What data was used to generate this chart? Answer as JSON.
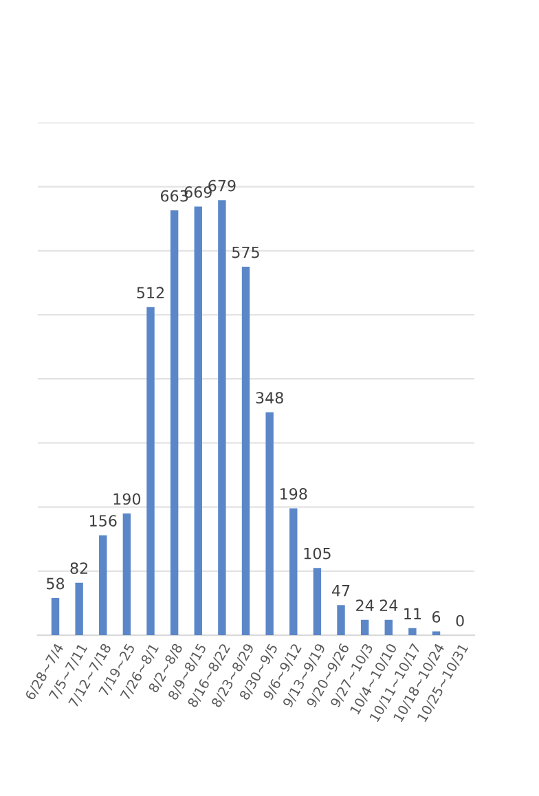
{
  "chart_data": {
    "type": "bar",
    "categories": [
      "6/28~7/4",
      "7/5~7/11",
      "7/12~7/18",
      "7/19~25",
      "7/26~8/1",
      "8/2~8/8",
      "8/9~8/15",
      "8/16~8/22",
      "8/23~8/29",
      "8/30~9/5",
      "9/6~9/12",
      "9/13~9/19",
      "9/20~9/26",
      "9/27~10/3",
      "10/4~10/10",
      "10/11~10/17",
      "10/18~10/24",
      "10/25~10/31"
    ],
    "values": [
      58,
      82,
      156,
      190,
      512,
      663,
      669,
      679,
      575,
      348,
      198,
      105,
      47,
      24,
      24,
      11,
      6,
      0
    ],
    "color": "#5b87c9",
    "ylim": [
      0,
      800
    ],
    "yticks": [
      {
        "value": 0,
        "label": null
      },
      {
        "value": 100,
        "label": null
      },
      {
        "value": 200,
        "label": null
      },
      {
        "value": 300,
        "label": null
      },
      {
        "value": 400,
        "label": null
      },
      {
        "value": 500,
        "label": null
      },
      {
        "value": 600,
        "label": null
      },
      {
        "value": 700,
        "label": null
      },
      {
        "value": 800,
        "label": null
      }
    ],
    "grid": "y",
    "tick_labels": "x",
    "data_labels": true
  }
}
